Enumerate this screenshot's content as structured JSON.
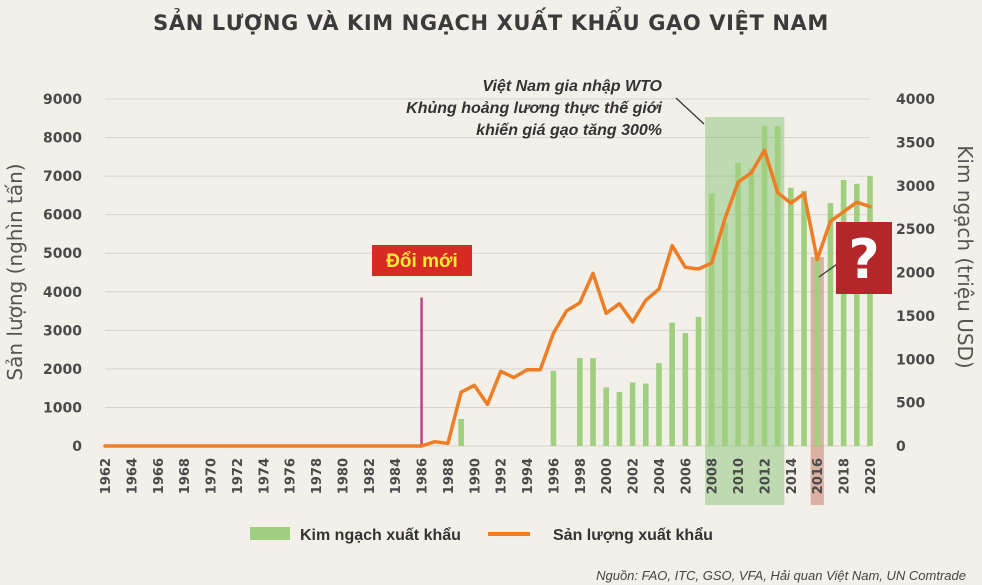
{
  "title": "SẢN LƯỢNG VÀ KIM NGẠCH XUẤT KHẨU GẠO VIỆT NAM",
  "source": "Nguồn: FAO, ITC, GSO, VFA, Hải quan Việt Nam, UN Comtrade",
  "annotations": {
    "wto": [
      "Việt Nam gia nhập WTO",
      "Khủng hoảng lương thực thế giới",
      "khiến giá gạo tăng 300%"
    ],
    "doimoi": "Đổi mới",
    "question": "?"
  },
  "colors": {
    "background": "#f2f0e9",
    "bars": "#9fcf7f",
    "line": "#ef7d26",
    "highlight_green": "#7dbf6a",
    "highlight_red": "#c77c6a",
    "marker": "#c2418a",
    "badge": "#d62a22",
    "question_badge": "#b3262a"
  },
  "chart_data": {
    "type": "bar+line",
    "xlabel": "",
    "ylabel_left": "Sản lượng (nghìn tấn)",
    "ylabel_right": "Kim ngạch (triệu USD)",
    "ylim_left": [
      0,
      9000
    ],
    "ylim_right": [
      0,
      4000
    ],
    "yticks_left": [
      0,
      1000,
      2000,
      3000,
      4000,
      5000,
      6000,
      7000,
      8000,
      9000
    ],
    "yticks_right": [
      0,
      500,
      1000,
      1500,
      2000,
      2500,
      3000,
      3500,
      4000
    ],
    "x_ticks": [
      1962,
      1964,
      1966,
      1968,
      1970,
      1972,
      1974,
      1976,
      1978,
      1980,
      1982,
      1984,
      1986,
      1988,
      1990,
      1992,
      1994,
      1996,
      1998,
      2000,
      2002,
      2004,
      2006,
      2008,
      2010,
      2012,
      2014,
      2016,
      2018,
      2020
    ],
    "grid": true,
    "legend": "bottom",
    "series": [
      {
        "name": "Kim ngạch xuất khẩu",
        "kind": "bar",
        "axis": "left",
        "x": [
          1989,
          1996,
          1998,
          1999,
          2000,
          2001,
          2002,
          2003,
          2004,
          2005,
          2006,
          2007,
          2008,
          2009,
          2010,
          2011,
          2012,
          2013,
          2014,
          2015,
          2016,
          2017,
          2018,
          2019,
          2020
        ],
        "values": [
          700,
          1950,
          2280,
          2280,
          1520,
          1400,
          1650,
          1620,
          2150,
          3200,
          2930,
          3350,
          6550,
          5780,
          7350,
          7200,
          8300,
          8300,
          6700,
          6620,
          4900,
          6300,
          6900,
          6800,
          7000
        ]
      },
      {
        "name": "Sản lượng xuất khẩu",
        "kind": "line",
        "axis": "right",
        "x": [
          1962,
          1963,
          1964,
          1965,
          1966,
          1967,
          1968,
          1969,
          1970,
          1971,
          1972,
          1973,
          1974,
          1975,
          1976,
          1977,
          1978,
          1979,
          1980,
          1981,
          1982,
          1983,
          1984,
          1985,
          1986,
          1987,
          1988,
          1989,
          1990,
          1991,
          1992,
          1993,
          1994,
          1995,
          1996,
          1997,
          1998,
          1999,
          2000,
          2001,
          2002,
          2003,
          2004,
          2005,
          2006,
          2007,
          2008,
          2009,
          2010,
          2011,
          2012,
          2013,
          2014,
          2015,
          2016,
          2017,
          2018,
          2019,
          2020
        ],
        "values": [
          0,
          0,
          0,
          0,
          0,
          0,
          0,
          0,
          0,
          0,
          0,
          0,
          0,
          0,
          0,
          0,
          0,
          0,
          0,
          0,
          0,
          0,
          0,
          0,
          0,
          50,
          30,
          620,
          700,
          480,
          860,
          790,
          880,
          880,
          1300,
          1560,
          1650,
          1990,
          1530,
          1640,
          1430,
          1680,
          1810,
          2310,
          2060,
          2040,
          2110,
          2620,
          3040,
          3150,
          3410,
          2920,
          2800,
          2910,
          2150,
          2590,
          2700,
          2810,
          2760
        ]
      }
    ],
    "highlights": [
      {
        "from": 2007.5,
        "to": 2013.5,
        "color": "green"
      },
      {
        "from": 2015.5,
        "to": 2016.5,
        "color": "red"
      }
    ],
    "marker_year": 1986,
    "marker_value_left": 3850
  }
}
